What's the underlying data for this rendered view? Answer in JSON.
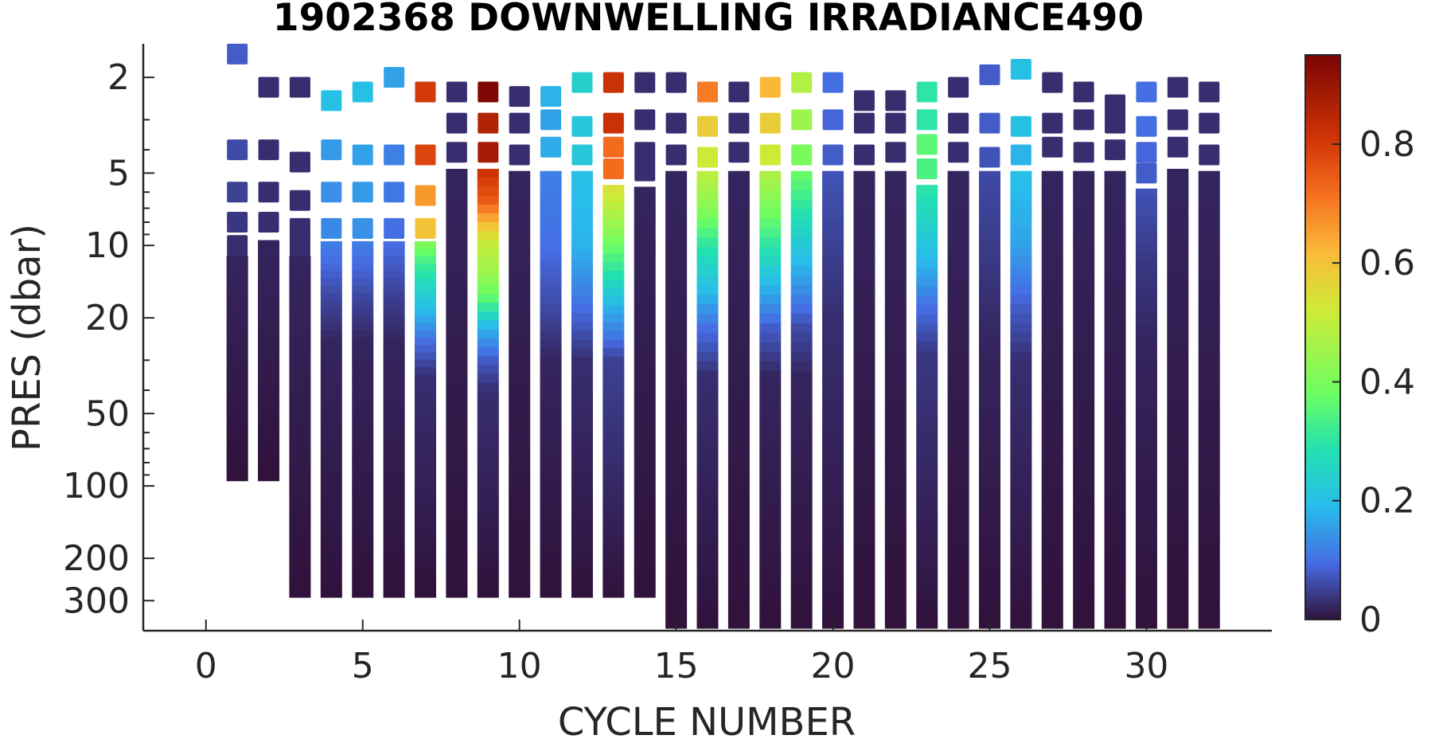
{
  "chart_data": {
    "type": "scatter",
    "title": "1902368  DOWNWELLING IRRADIANCE490",
    "xlabel": "CYCLE NUMBER",
    "ylabel": "PRES (dbar)",
    "xlim": [
      -2,
      34
    ],
    "ylim": [
      1.45,
      400
    ],
    "y_scale": "log",
    "y_reversed": true,
    "x_ticks": [
      0,
      5,
      10,
      15,
      20,
      25,
      30
    ],
    "y_ticks": [
      2,
      5,
      10,
      20,
      50,
      100,
      200,
      300
    ],
    "grid": false,
    "colorbar": {
      "colormap": "turbo",
      "range": [
        0,
        0.95
      ],
      "ticks": [
        0,
        0.2,
        0.4,
        0.6,
        0.8
      ],
      "tick_labels": [
        "0",
        "0.2",
        "0.4",
        "0.6",
        "0.8"
      ]
    },
    "profiles": [
      {
        "cycle": 1,
        "surface": [
          [
            1.6,
            0.08
          ],
          [
            4,
            0.06
          ],
          [
            6,
            0.05
          ],
          [
            8,
            0.04
          ],
          [
            10,
            0.03
          ]
        ],
        "columnTop": 11,
        "bottom": 95,
        "profile": [
          [
            11,
            0.02
          ],
          [
            95,
            0.0
          ]
        ]
      },
      {
        "cycle": 2,
        "surface": [
          [
            2.2,
            0.03
          ],
          [
            4,
            0.03
          ],
          [
            6,
            0.03
          ],
          [
            8,
            0.03
          ]
        ],
        "columnTop": 9.5,
        "bottom": 95,
        "profile": [
          [
            9.5,
            0.02
          ],
          [
            95,
            0.0
          ]
        ]
      },
      {
        "cycle": 3,
        "surface": [
          [
            2.2,
            0.03
          ],
          [
            4.5,
            0.03
          ],
          [
            6.5,
            0.03
          ],
          [
            8.5,
            0.03
          ],
          [
            10,
            0.03
          ]
        ],
        "columnTop": 11,
        "bottom": 290,
        "profile": [
          [
            11,
            0.02
          ],
          [
            290,
            0.0
          ]
        ]
      },
      {
        "cycle": 4,
        "surface": [
          [
            2.5,
            0.2
          ],
          [
            4,
            0.15
          ],
          [
            6,
            0.14
          ],
          [
            8.5,
            0.13
          ]
        ],
        "columnTop": 9.6,
        "bottom": 290,
        "profile": [
          [
            9.6,
            0.12
          ],
          [
            16,
            0.06
          ],
          [
            25,
            0.02
          ],
          [
            290,
            0.0
          ]
        ]
      },
      {
        "cycle": 5,
        "surface": [
          [
            2.3,
            0.2
          ],
          [
            4.2,
            0.16
          ],
          [
            6,
            0.15
          ],
          [
            8.5,
            0.14
          ]
        ],
        "columnTop": 9.6,
        "bottom": 290,
        "profile": [
          [
            9.6,
            0.12
          ],
          [
            16,
            0.06
          ],
          [
            25,
            0.02
          ],
          [
            290,
            0.0
          ]
        ]
      },
      {
        "cycle": 6,
        "surface": [
          [
            2.0,
            0.16
          ],
          [
            4.2,
            0.12
          ],
          [
            6,
            0.11
          ],
          [
            8.5,
            0.1
          ]
        ],
        "columnTop": 9.6,
        "bottom": 290,
        "profile": [
          [
            9.6,
            0.1
          ],
          [
            16,
            0.05
          ],
          [
            25,
            0.02
          ],
          [
            290,
            0.0
          ]
        ]
      },
      {
        "cycle": 7,
        "surface": [
          [
            2.3,
            0.8
          ],
          [
            4.2,
            0.78
          ],
          [
            6.2,
            0.66
          ],
          [
            8.5,
            0.6
          ]
        ],
        "columnTop": 9.6,
        "bottom": 290,
        "profile": [
          [
            9.6,
            0.42
          ],
          [
            12,
            0.32
          ],
          [
            18,
            0.2
          ],
          [
            25,
            0.1
          ],
          [
            35,
            0.03
          ],
          [
            290,
            0.0
          ]
        ]
      },
      {
        "cycle": 8,
        "surface": [
          [
            2.3,
            0.03
          ],
          [
            3.1,
            0.03
          ],
          [
            4.1,
            0.03
          ]
        ],
        "columnTop": 4.8,
        "bottom": 290,
        "profile": [
          [
            4.8,
            0.02
          ],
          [
            290,
            0.0
          ]
        ]
      },
      {
        "cycle": 9,
        "surface": [
          [
            2.3,
            0.94
          ],
          [
            3.1,
            0.86
          ],
          [
            4.1,
            0.88
          ]
        ],
        "columnTop": 4.8,
        "bottom": 290,
        "profile": [
          [
            4.8,
            0.82
          ],
          [
            6.5,
            0.75
          ],
          [
            8,
            0.62
          ],
          [
            10,
            0.5
          ],
          [
            13,
            0.45
          ],
          [
            17,
            0.35
          ],
          [
            22,
            0.18
          ],
          [
            30,
            0.08
          ],
          [
            40,
            0.03
          ],
          [
            290,
            0.0
          ]
        ]
      },
      {
        "cycle": 10,
        "surface": [
          [
            2.4,
            0.03
          ],
          [
            3.1,
            0.03
          ],
          [
            4.2,
            0.03
          ]
        ],
        "columnTop": 4.9,
        "bottom": 290,
        "profile": [
          [
            4.9,
            0.02
          ],
          [
            290,
            0.0
          ]
        ]
      },
      {
        "cycle": 11,
        "surface": [
          [
            2.4,
            0.18
          ],
          [
            3.0,
            0.16
          ],
          [
            3.9,
            0.17
          ]
        ],
        "columnTop": 4.9,
        "bottom": 290,
        "profile": [
          [
            4.9,
            0.12
          ],
          [
            10,
            0.1
          ],
          [
            18,
            0.06
          ],
          [
            30,
            0.02
          ],
          [
            290,
            0.0
          ]
        ]
      },
      {
        "cycle": 12,
        "surface": [
          [
            2.1,
            0.24
          ],
          [
            3.2,
            0.22
          ],
          [
            4.2,
            0.22
          ]
        ],
        "columnTop": 4.9,
        "bottom": 290,
        "profile": [
          [
            4.9,
            0.2
          ],
          [
            10,
            0.18
          ],
          [
            18,
            0.1
          ],
          [
            30,
            0.03
          ],
          [
            290,
            0.0
          ]
        ]
      },
      {
        "cycle": 13,
        "surface": [
          [
            2.1,
            0.82
          ],
          [
            3.1,
            0.82
          ],
          [
            3.9,
            0.72
          ],
          [
            4.8,
            0.72
          ]
        ],
        "columnTop": 5.6,
        "bottom": 290,
        "profile": [
          [
            5.6,
            0.55
          ],
          [
            8,
            0.45
          ],
          [
            12,
            0.32
          ],
          [
            18,
            0.18
          ],
          [
            30,
            0.05
          ],
          [
            290,
            0.0
          ]
        ]
      },
      {
        "cycle": 14,
        "surface": [
          [
            2.1,
            0.03
          ],
          [
            3.0,
            0.03
          ],
          [
            4.1,
            0.03
          ],
          [
            4.9,
            0.03
          ]
        ],
        "columnTop": 5.7,
        "bottom": 290,
        "profile": [
          [
            5.7,
            0.02
          ],
          [
            290,
            0.0
          ]
        ]
      },
      {
        "cycle": 15,
        "surface": [
          [
            2.1,
            0.03
          ],
          [
            3.1,
            0.03
          ],
          [
            4.2,
            0.03
          ]
        ],
        "columnTop": 4.9,
        "bottom": 390,
        "profile": [
          [
            4.9,
            0.02
          ],
          [
            390,
            0.0
          ]
        ]
      },
      {
        "cycle": 16,
        "surface": [
          [
            2.3,
            0.7
          ],
          [
            3.2,
            0.58
          ],
          [
            4.3,
            0.52
          ]
        ],
        "columnTop": 4.9,
        "bottom": 390,
        "profile": [
          [
            4.9,
            0.5
          ],
          [
            7,
            0.42
          ],
          [
            10,
            0.3
          ],
          [
            15,
            0.2
          ],
          [
            22,
            0.1
          ],
          [
            35,
            0.03
          ],
          [
            390,
            0.0
          ]
        ]
      },
      {
        "cycle": 17,
        "surface": [
          [
            2.3,
            0.03
          ],
          [
            3.1,
            0.03
          ],
          [
            4.1,
            0.03
          ]
        ],
        "columnTop": 4.9,
        "bottom": 390,
        "profile": [
          [
            4.9,
            0.02
          ],
          [
            390,
            0.0
          ]
        ]
      },
      {
        "cycle": 18,
        "surface": [
          [
            2.2,
            0.62
          ],
          [
            3.1,
            0.58
          ],
          [
            4.2,
            0.52
          ]
        ],
        "columnTop": 4.9,
        "bottom": 390,
        "profile": [
          [
            4.9,
            0.48
          ],
          [
            7,
            0.4
          ],
          [
            10,
            0.3
          ],
          [
            15,
            0.18
          ],
          [
            22,
            0.08
          ],
          [
            35,
            0.02
          ],
          [
            390,
            0.0
          ]
        ]
      },
      {
        "cycle": 19,
        "surface": [
          [
            2.1,
            0.48
          ],
          [
            3.0,
            0.45
          ],
          [
            4.2,
            0.4
          ]
        ],
        "columnTop": 4.9,
        "bottom": 390,
        "profile": [
          [
            4.9,
            0.38
          ],
          [
            7,
            0.3
          ],
          [
            10,
            0.22
          ],
          [
            15,
            0.14
          ],
          [
            22,
            0.06
          ],
          [
            35,
            0.02
          ],
          [
            390,
            0.0
          ]
        ]
      },
      {
        "cycle": 20,
        "surface": [
          [
            2.1,
            0.1
          ],
          [
            3.0,
            0.09
          ],
          [
            4.2,
            0.08
          ]
        ],
        "columnTop": 4.9,
        "bottom": 390,
        "profile": [
          [
            4.9,
            0.07
          ],
          [
            10,
            0.05
          ],
          [
            20,
            0.03
          ],
          [
            390,
            0.0
          ]
        ]
      },
      {
        "cycle": 21,
        "surface": [
          [
            2.5,
            0.03
          ],
          [
            3.1,
            0.03
          ],
          [
            4.2,
            0.03
          ]
        ],
        "columnTop": 4.9,
        "bottom": 390,
        "profile": [
          [
            4.9,
            0.02
          ],
          [
            390,
            0.0
          ]
        ]
      },
      {
        "cycle": 22,
        "surface": [
          [
            2.5,
            0.03
          ],
          [
            3.1,
            0.03
          ],
          [
            4.1,
            0.03
          ]
        ],
        "columnTop": 4.9,
        "bottom": 390,
        "profile": [
          [
            4.9,
            0.02
          ],
          [
            390,
            0.0
          ]
        ]
      },
      {
        "cycle": 23,
        "surface": [
          [
            2.3,
            0.3
          ],
          [
            3.0,
            0.3
          ],
          [
            3.8,
            0.36
          ],
          [
            4.8,
            0.34
          ]
        ],
        "columnTop": 5.6,
        "bottom": 390,
        "profile": [
          [
            5.6,
            0.3
          ],
          [
            8,
            0.25
          ],
          [
            12,
            0.18
          ],
          [
            18,
            0.1
          ],
          [
            28,
            0.04
          ],
          [
            390,
            0.0
          ]
        ]
      },
      {
        "cycle": 24,
        "surface": [
          [
            2.2,
            0.03
          ],
          [
            3.1,
            0.03
          ],
          [
            4.1,
            0.03
          ]
        ],
        "columnTop": 4.9,
        "bottom": 390,
        "profile": [
          [
            4.9,
            0.02
          ],
          [
            390,
            0.0
          ]
        ]
      },
      {
        "cycle": 25,
        "surface": [
          [
            1.95,
            0.08
          ],
          [
            3.1,
            0.08
          ],
          [
            4.3,
            0.07
          ]
        ],
        "columnTop": 4.9,
        "bottom": 390,
        "profile": [
          [
            4.9,
            0.06
          ],
          [
            12,
            0.04
          ],
          [
            25,
            0.02
          ],
          [
            390,
            0.0
          ]
        ]
      },
      {
        "cycle": 26,
        "surface": [
          [
            1.85,
            0.2
          ],
          [
            3.2,
            0.2
          ],
          [
            4.2,
            0.18
          ]
        ],
        "columnTop": 4.9,
        "bottom": 390,
        "profile": [
          [
            4.9,
            0.2
          ],
          [
            10,
            0.16
          ],
          [
            18,
            0.08
          ],
          [
            30,
            0.03
          ],
          [
            390,
            0.0
          ]
        ]
      },
      {
        "cycle": 27,
        "surface": [
          [
            2.1,
            0.03
          ],
          [
            3.1,
            0.03
          ],
          [
            3.9,
            0.03
          ]
        ],
        "columnTop": 4.9,
        "bottom": 390,
        "profile": [
          [
            4.9,
            0.02
          ],
          [
            390,
            0.0
          ]
        ]
      },
      {
        "cycle": 28,
        "surface": [
          [
            2.3,
            0.03
          ],
          [
            3.0,
            0.03
          ],
          [
            4.1,
            0.03
          ]
        ],
        "columnTop": 4.9,
        "bottom": 390,
        "profile": [
          [
            4.9,
            0.02
          ],
          [
            390,
            0.0
          ]
        ]
      },
      {
        "cycle": 29,
        "surface": [
          [
            2.6,
            0.03
          ],
          [
            3.1,
            0.03
          ],
          [
            4.0,
            0.03
          ]
        ],
        "columnTop": 4.9,
        "bottom": 390,
        "profile": [
          [
            4.9,
            0.02
          ],
          [
            390,
            0.0
          ]
        ]
      },
      {
        "cycle": 30,
        "surface": [
          [
            2.3,
            0.1
          ],
          [
            3.2,
            0.1
          ],
          [
            4.1,
            0.09
          ],
          [
            5.0,
            0.08
          ]
        ],
        "columnTop": 5.8,
        "bottom": 390,
        "profile": [
          [
            5.8,
            0.07
          ],
          [
            12,
            0.04
          ],
          [
            25,
            0.02
          ],
          [
            390,
            0.0
          ]
        ]
      },
      {
        "cycle": 31,
        "surface": [
          [
            2.2,
            0.03
          ],
          [
            3.0,
            0.03
          ],
          [
            3.9,
            0.03
          ]
        ],
        "columnTop": 4.8,
        "bottom": 390,
        "profile": [
          [
            4.8,
            0.02
          ],
          [
            390,
            0.0
          ]
        ]
      },
      {
        "cycle": 32,
        "surface": [
          [
            2.3,
            0.03
          ],
          [
            3.1,
            0.03
          ],
          [
            4.2,
            0.03
          ]
        ],
        "columnTop": 4.9,
        "bottom": 390,
        "profile": [
          [
            4.9,
            0.02
          ],
          [
            390,
            0.0
          ]
        ]
      }
    ]
  }
}
